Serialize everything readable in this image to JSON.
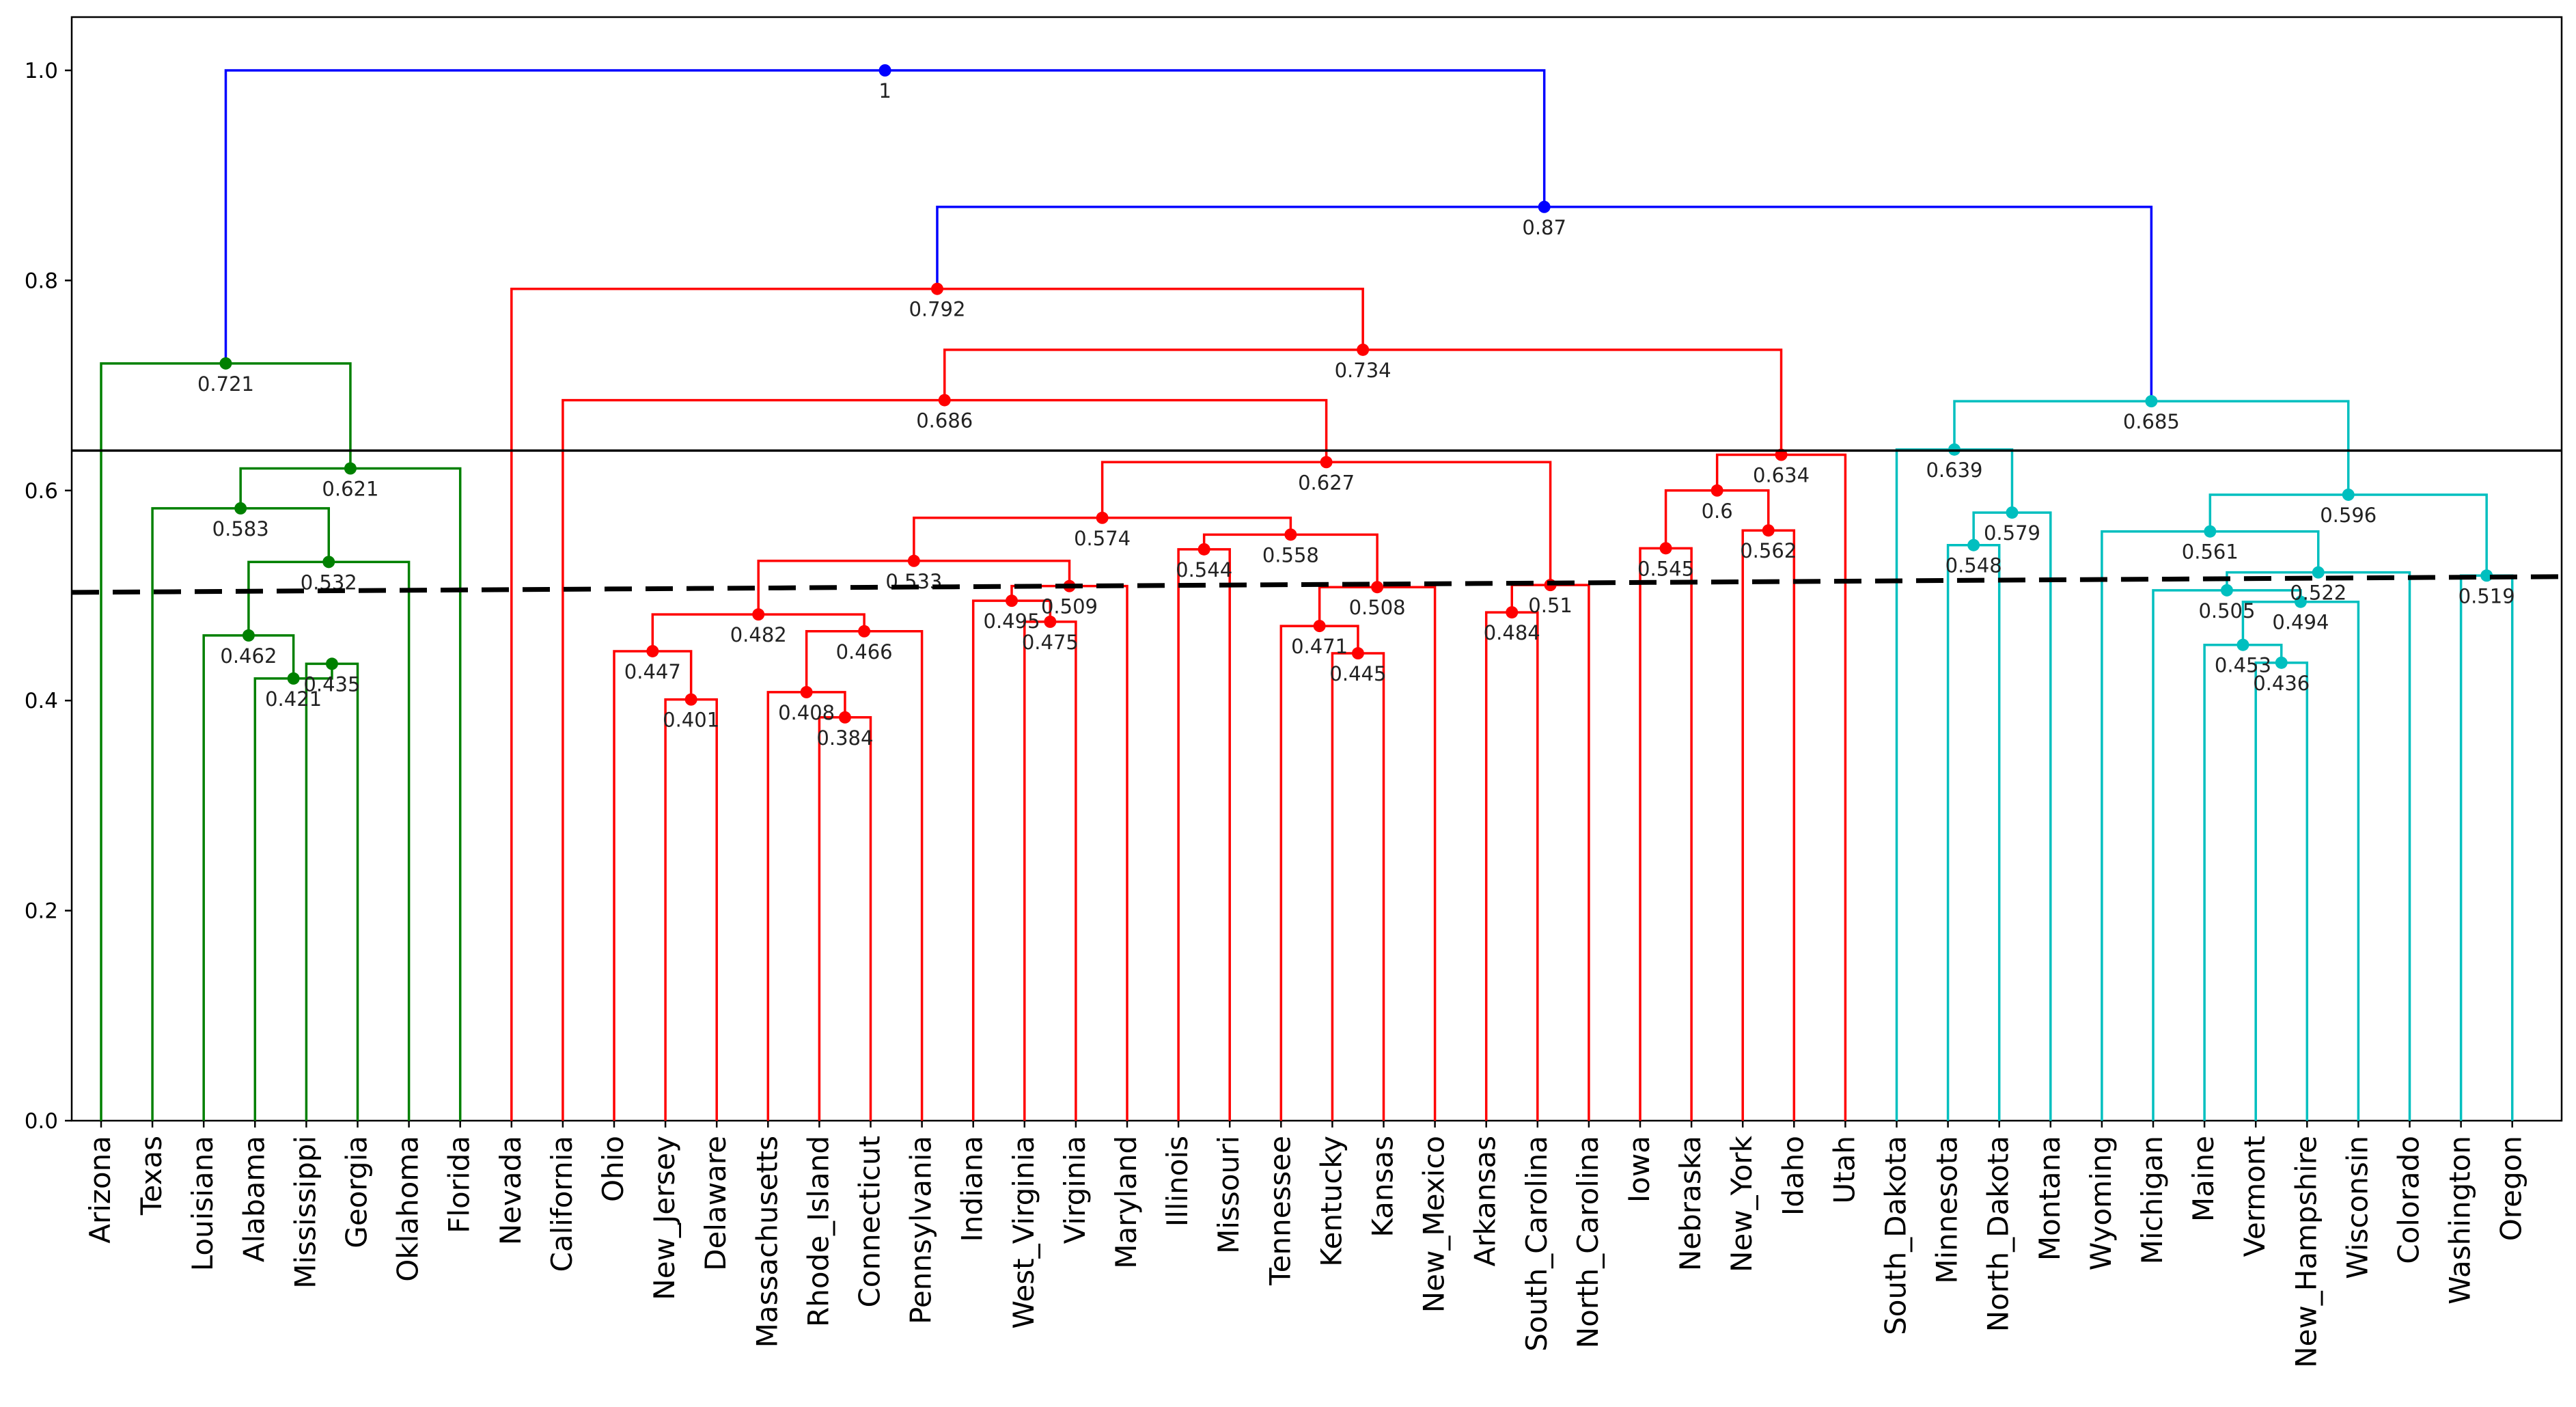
{
  "chart_data": {
    "type": "dendrogram",
    "leaves": [
      "Arizona",
      "Texas",
      "Louisiana",
      "Alabama",
      "Mississippi",
      "Georgia",
      "Oklahoma",
      "Florida",
      "Nevada",
      "California",
      "Ohio",
      "New_Jersey",
      "Delaware",
      "Massachusetts",
      "Rhode_Island",
      "Connecticut",
      "Pennsylvania",
      "Indiana",
      "West_Virginia",
      "Virginia",
      "Maryland",
      "Illinois",
      "Missouri",
      "Tennessee",
      "Kentucky",
      "Kansas",
      "New_Mexico",
      "Arkansas",
      "South_Carolina",
      "North_Carolina",
      "Iowa",
      "Nebraska",
      "New_York",
      "Idaho",
      "Utah",
      "South_Dakota",
      "Minnesota",
      "North_Dakota",
      "Montana",
      "Wyoming",
      "Michigan",
      "Maine",
      "Vermont",
      "New_Hampshire",
      "Wisconsin",
      "Colorado",
      "Washington",
      "Oregon"
    ],
    "yticks": [
      "0.0",
      "0.2",
      "0.4",
      "0.6",
      "0.8",
      "1.0"
    ],
    "ylim": [
      0,
      1.05
    ],
    "colors": {
      "green": "#008000",
      "red": "#ff0000",
      "cyan": "#00bfbf",
      "blue": "#0000ff"
    },
    "merges": [
      {
        "id": "m1",
        "left": "Mississippi",
        "right": "Georgia",
        "height": 0.435,
        "label": "0.435",
        "color": "green"
      },
      {
        "id": "m2",
        "left": "Alabama",
        "right": "m1",
        "height": 0.421,
        "label": "0.421",
        "color": "green"
      },
      {
        "id": "m3",
        "left": "Louisiana",
        "right": "m2",
        "height": 0.462,
        "label": "0.462",
        "color": "green"
      },
      {
        "id": "m4",
        "left": "m3",
        "right": "Oklahoma",
        "height": 0.532,
        "label": "0.532",
        "color": "green"
      },
      {
        "id": "m5",
        "left": "Texas",
        "right": "m4",
        "height": 0.583,
        "label": "0.583",
        "color": "green"
      },
      {
        "id": "m6",
        "left": "m5",
        "right": "Florida",
        "height": 0.621,
        "label": "0.621",
        "color": "green"
      },
      {
        "id": "m7",
        "left": "Arizona",
        "right": "m6",
        "height": 0.721,
        "label": "0.721",
        "color": "green"
      },
      {
        "id": "m8",
        "left": "New_Jersey",
        "right": "Delaware",
        "height": 0.401,
        "label": "0.401",
        "color": "red"
      },
      {
        "id": "m9",
        "left": "Ohio",
        "right": "m8",
        "height": 0.447,
        "label": "0.447",
        "color": "red"
      },
      {
        "id": "m10",
        "left": "Rhode_Island",
        "right": "Connecticut",
        "height": 0.384,
        "label": "0.384",
        "color": "red"
      },
      {
        "id": "m11",
        "left": "Massachusetts",
        "right": "m10",
        "height": 0.408,
        "label": "0.408",
        "color": "red"
      },
      {
        "id": "m12",
        "left": "m11",
        "right": "Pennsylvania",
        "height": 0.466,
        "label": "0.466",
        "color": "red"
      },
      {
        "id": "m13",
        "left": "m9",
        "right": "m12",
        "height": 0.482,
        "label": "0.482",
        "color": "red"
      },
      {
        "id": "m14",
        "left": "West_Virginia",
        "right": "Virginia",
        "height": 0.475,
        "label": "0.475",
        "color": "red"
      },
      {
        "id": "m15",
        "left": "Indiana",
        "right": "m14",
        "height": 0.495,
        "label": "0.495",
        "color": "red"
      },
      {
        "id": "m16",
        "left": "m15",
        "right": "Maryland",
        "height": 0.509,
        "label": "0.509",
        "color": "red"
      },
      {
        "id": "m17",
        "left": "m13",
        "right": "m16",
        "height": 0.533,
        "label": "0.533",
        "color": "red"
      },
      {
        "id": "m18",
        "left": "Kentucky",
        "right": "Kansas",
        "height": 0.445,
        "label": "0.445",
        "color": "red"
      },
      {
        "id": "m19",
        "left": "Tennessee",
        "right": "m18",
        "height": 0.471,
        "label": "0.471",
        "color": "red"
      },
      {
        "id": "m20",
        "left": "m19",
        "right": "New_Mexico",
        "height": 0.508,
        "label": "0.508",
        "color": "red"
      },
      {
        "id": "m21",
        "left": "Illinois",
        "right": "Missouri",
        "height": 0.544,
        "label": "0.544",
        "color": "red"
      },
      {
        "id": "m22",
        "left": "m21",
        "right": "m20",
        "height": 0.558,
        "label": "0.558",
        "color": "red"
      },
      {
        "id": "m23",
        "left": "m17",
        "right": "m22",
        "height": 0.574,
        "label": "0.574",
        "color": "red"
      },
      {
        "id": "m24",
        "left": "Arkansas",
        "right": "South_Carolina",
        "height": 0.484,
        "label": "0.484",
        "color": "red"
      },
      {
        "id": "m25",
        "left": "m24",
        "right": "North_Carolina",
        "height": 0.51,
        "label": "0.51",
        "color": "red"
      },
      {
        "id": "m26",
        "left": "m23",
        "right": "m25",
        "height": 0.627,
        "label": "0.627",
        "color": "red"
      },
      {
        "id": "m27",
        "left": "California",
        "right": "m26",
        "height": 0.686,
        "label": "0.686",
        "color": "red"
      },
      {
        "id": "m28",
        "left": "Iowa",
        "right": "Nebraska",
        "height": 0.545,
        "label": "0.545",
        "color": "red"
      },
      {
        "id": "m29",
        "left": "New_York",
        "right": "Idaho",
        "height": 0.562,
        "label": "0.562",
        "color": "red"
      },
      {
        "id": "m30",
        "left": "m28",
        "right": "m29",
        "height": 0.6,
        "label": "0.6",
        "color": "red"
      },
      {
        "id": "m31",
        "left": "m30",
        "right": "Utah",
        "height": 0.634,
        "label": "0.634",
        "color": "red"
      },
      {
        "id": "m32",
        "left": "m27",
        "right": "m31",
        "height": 0.734,
        "label": "0.734",
        "color": "red"
      },
      {
        "id": "m33",
        "left": "Nevada",
        "right": "m32",
        "height": 0.792,
        "label": "0.792",
        "color": "red"
      },
      {
        "id": "m34",
        "left": "Minnesota",
        "right": "North_Dakota",
        "height": 0.548,
        "label": "0.548",
        "color": "cyan"
      },
      {
        "id": "m35",
        "left": "m34",
        "right": "Montana",
        "height": 0.579,
        "label": "0.579",
        "color": "cyan"
      },
      {
        "id": "m36",
        "left": "South_Dakota",
        "right": "m35",
        "height": 0.639,
        "label": "0.639",
        "color": "cyan"
      },
      {
        "id": "m37",
        "left": "Vermont",
        "right": "New_Hampshire",
        "height": 0.436,
        "label": "0.436",
        "color": "cyan"
      },
      {
        "id": "m38",
        "left": "Maine",
        "right": "m37",
        "height": 0.453,
        "label": "0.453",
        "color": "cyan"
      },
      {
        "id": "m39",
        "left": "m38",
        "right": "Wisconsin",
        "height": 0.494,
        "label": "0.494",
        "color": "cyan"
      },
      {
        "id": "m40",
        "left": "Michigan",
        "right": "m39",
        "height": 0.505,
        "label": "0.505",
        "color": "cyan"
      },
      {
        "id": "m41",
        "left": "m40",
        "right": "Colorado",
        "height": 0.522,
        "label": "0.522",
        "color": "cyan"
      },
      {
        "id": "m42",
        "left": "Wyoming",
        "right": "m41",
        "height": 0.561,
        "label": "0.561",
        "color": "cyan"
      },
      {
        "id": "m43",
        "left": "Washington",
        "right": "Oregon",
        "height": 0.519,
        "label": "0.519",
        "color": "cyan"
      },
      {
        "id": "m44",
        "left": "m42",
        "right": "m43",
        "height": 0.596,
        "label": "0.596",
        "color": "cyan"
      },
      {
        "id": "m45",
        "left": "m36",
        "right": "m44",
        "height": 0.685,
        "label": "0.685",
        "color": "cyan"
      },
      {
        "id": "m46",
        "left": "m33",
        "right": "m45",
        "height": 0.87,
        "label": "0.87",
        "color": "blue"
      },
      {
        "id": "m47",
        "left": "m7",
        "right": "m46",
        "height": 1.0,
        "label": "1",
        "color": "blue"
      }
    ],
    "reference_lines": [
      {
        "style": "solid",
        "color": "#000000",
        "y_left": 0.638,
        "y_right": 0.638
      },
      {
        "style": "dashed",
        "color": "#000000",
        "y_left": 0.503,
        "y_right": 0.518
      }
    ]
  }
}
